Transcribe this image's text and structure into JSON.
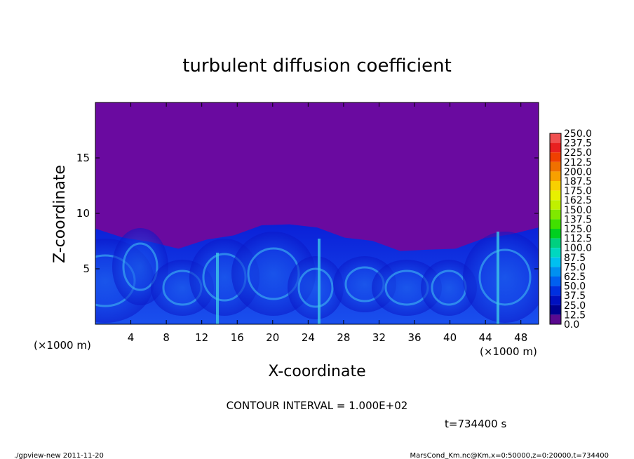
{
  "chart_data": {
    "type": "heatmap",
    "title": "turbulent diffusion coefficient",
    "xlabel": "X-coordinate",
    "ylabel": "Z-coordinate",
    "x_unit": "(×1000 m)",
    "x_unit_right": "(×1000 m)",
    "xlim": [
      0,
      50
    ],
    "ylim": [
      0,
      20
    ],
    "x_ticks": [
      "4",
      "8",
      "12",
      "16",
      "20",
      "24",
      "28",
      "32",
      "36",
      "40",
      "44",
      "48"
    ],
    "y_ticks": [
      "5",
      "10",
      "15"
    ],
    "colorbar": {
      "levels": [
        "250.0",
        "237.5",
        "225.0",
        "212.5",
        "200.0",
        "187.5",
        "175.0",
        "162.5",
        "150.0",
        "137.5",
        "125.0",
        "112.5",
        "100.0",
        "87.5",
        "75.0",
        "62.5",
        "50.0",
        "37.5",
        "25.0",
        "12.5",
        "0.0"
      ],
      "colors": [
        "#f08080",
        "#f05050",
        "#e82020",
        "#f04000",
        "#f07000",
        "#f8a000",
        "#f8d000",
        "#e8f000",
        "#c0f000",
        "#80e800",
        "#40e000",
        "#00d020",
        "#00d080",
        "#00d8c0",
        "#00c0f0",
        "#0090f0",
        "#0060f0",
        "#0030e0",
        "#0010c0",
        "#000090",
        "#5a0a90"
      ]
    },
    "field_description": "turbulent layer boundary",
    "boundary_height_km": [
      8.5,
      8.0,
      7.3,
      7.0,
      7.5,
      8.2,
      8.8,
      9.2,
      8.6,
      8.0,
      7.4,
      6.8,
      6.6,
      7.0,
      7.6,
      8.3,
      8.6
    ],
    "contour_interval": "CONTOUR INTERVAL = 1.000E+02",
    "time_label": "t=734400 s"
  },
  "footer": {
    "left": "./gpview-new  2011-11-20",
    "right": "MarsCond_Km.nc@Km,x=0:50000,z=0:20000,t=734400"
  }
}
